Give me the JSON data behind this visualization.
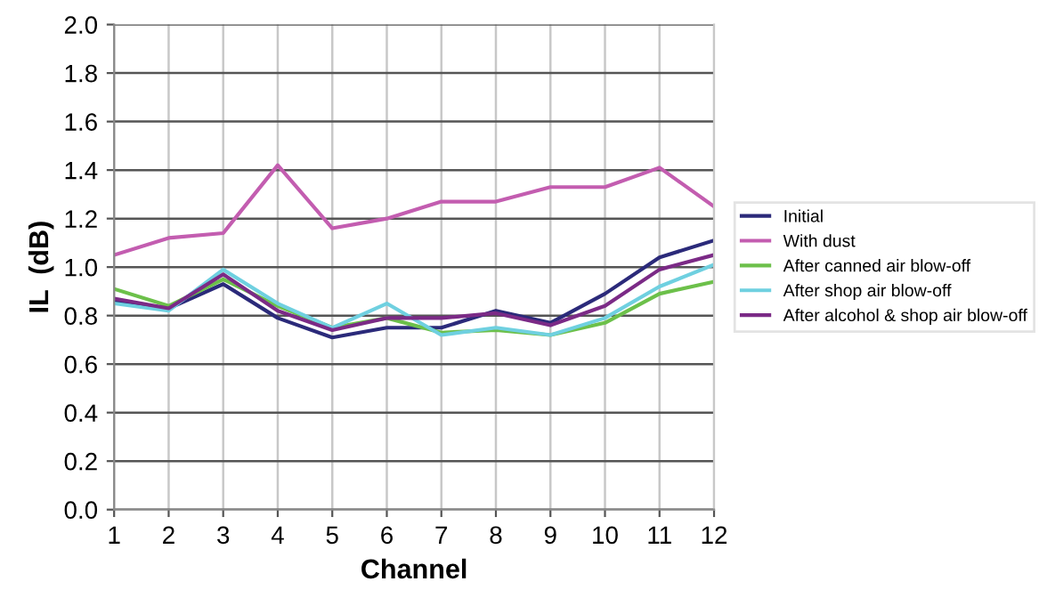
{
  "chart_data": {
    "type": "line",
    "xlabel": "Channel",
    "ylabel": "IL  (dB)",
    "x": [
      1,
      2,
      3,
      4,
      5,
      6,
      7,
      8,
      9,
      10,
      11,
      12
    ],
    "xlim": [
      1,
      12
    ],
    "xticks": [
      1,
      2,
      3,
      4,
      5,
      6,
      7,
      8,
      9,
      10,
      11,
      12
    ],
    "ylim": [
      0,
      2
    ],
    "yticks": [
      {
        "value": 0,
        "label": "0.0"
      },
      {
        "value": 0.2,
        "label": "0.2"
      },
      {
        "value": 0.4,
        "label": "0.4"
      },
      {
        "value": 0.6,
        "label": "0.6"
      },
      {
        "value": 0.8,
        "label": "0.8"
      },
      {
        "value": 1.0,
        "label": "1.0"
      },
      {
        "value": 1.2,
        "label": "1.2"
      },
      {
        "value": 1.4,
        "label": "1.4"
      },
      {
        "value": 1.6,
        "label": "1.6"
      },
      {
        "value": 1.8,
        "label": "1.8"
      },
      {
        "value": 2.0,
        "label": "2.0"
      }
    ],
    "grid": true,
    "legend": "right",
    "marker": "none",
    "line_style": "solid",
    "series": [
      {
        "name": "Initial",
        "color": "#2b2a7a",
        "values": [
          0.86,
          0.83,
          0.93,
          0.79,
          0.71,
          0.75,
          0.75,
          0.82,
          0.77,
          0.89,
          1.04,
          1.11
        ]
      },
      {
        "name": "With dust",
        "color": "#c35db0",
        "values": [
          1.05,
          1.12,
          1.14,
          1.42,
          1.16,
          1.2,
          1.27,
          1.27,
          1.33,
          1.33,
          1.41,
          1.25
        ]
      },
      {
        "name": "After canned air blow-off",
        "color": "#6cc04a",
        "values": [
          0.91,
          0.84,
          0.95,
          0.84,
          0.75,
          0.79,
          0.73,
          0.74,
          0.72,
          0.77,
          0.89,
          0.94
        ]
      },
      {
        "name": "After shop air blow-off",
        "color": "#6fd0e0",
        "values": [
          0.85,
          0.82,
          0.99,
          0.85,
          0.75,
          0.85,
          0.72,
          0.75,
          0.72,
          0.79,
          0.92,
          1.01
        ]
      },
      {
        "name": "After alcohol & shop air blow-off",
        "color": "#7b2a86",
        "values": [
          0.87,
          0.83,
          0.97,
          0.82,
          0.74,
          0.79,
          0.79,
          0.81,
          0.76,
          0.84,
          0.99,
          1.05
        ]
      }
    ]
  }
}
